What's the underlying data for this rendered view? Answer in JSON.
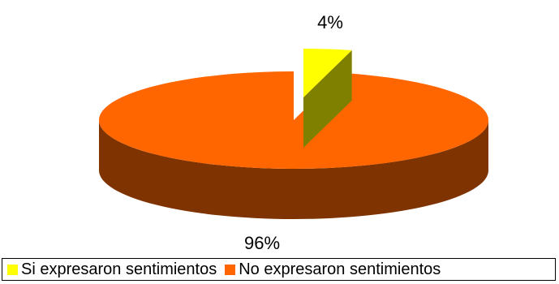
{
  "chart_data": {
    "type": "pie",
    "style": "3d-exploded",
    "categories": [
      "Si expresaron sentimientos",
      "No expresaron sentimientos"
    ],
    "values": [
      4,
      96
    ],
    "data_labels": [
      "4%",
      "96%"
    ],
    "colors": [
      "#ffff00",
      "#ff6600"
    ],
    "side_colors": [
      "#808000",
      "#7f3300"
    ],
    "legend_position": "bottom"
  }
}
